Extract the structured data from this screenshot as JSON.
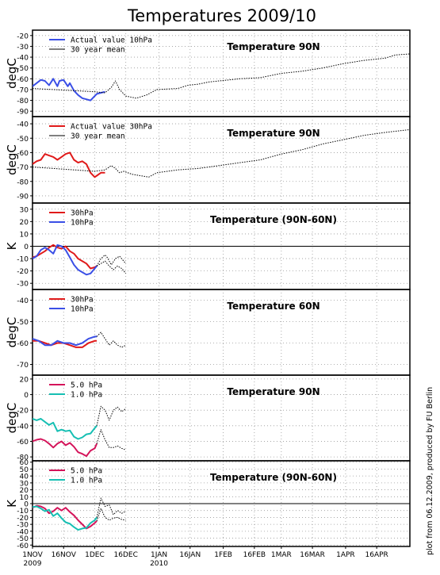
{
  "figure": {
    "title": "Temperatures 2009/10",
    "credit": "plot from 06.12.2009, produced by FU Berlin",
    "x_tick_labels": [
      "1NOV",
      "16NOV",
      "1DEC",
      "16DEC",
      "1JAN",
      "16JAN",
      "1FEB",
      "16FEB",
      "1MAR",
      "16MAR",
      "1APR",
      "16APR"
    ],
    "x_year_labels": [
      {
        "day": 0,
        "label": "2009"
      },
      {
        "day": 61,
        "label": "2010"
      }
    ],
    "x_range_days": [
      0,
      182
    ],
    "colors": {
      "blue": "#3a4fe6",
      "red": "#e01a1a",
      "magenta": "#d4145a",
      "cyan": "#16bfb3",
      "black": "#000000"
    }
  },
  "chart_data": [
    {
      "type": "line",
      "title": "Temperature 90N",
      "ylabel": "degC",
      "ylim": [
        -95,
        -15
      ],
      "yticks": [
        -90,
        -80,
        -70,
        -60,
        -50,
        -40,
        -30,
        -20
      ],
      "zero_line": false,
      "grid": true,
      "legend_position": "top-left",
      "series": [
        {
          "name": "Actual value 10hPa",
          "color": "blue",
          "style": "solid",
          "x": [
            0,
            2,
            4,
            6,
            8,
            10,
            12,
            13,
            15,
            17,
            18,
            20,
            22,
            24,
            26,
            28,
            30,
            31,
            33,
            35
          ],
          "y": [
            -67,
            -64,
            -61,
            -62,
            -66,
            -60,
            -67,
            -62,
            -61,
            -67,
            -64,
            -71,
            -75,
            -78,
            -79,
            -80,
            -76,
            -74,
            -73,
            -72
          ]
        },
        {
          "name": "30 year mean",
          "color": "black",
          "style": "dotted",
          "x": [
            0,
            10,
            20,
            30,
            35,
            38,
            40,
            42,
            45,
            50,
            55,
            60,
            70,
            75,
            80,
            85,
            90,
            95,
            100,
            110,
            120,
            130,
            140,
            150,
            160,
            170,
            175,
            182
          ],
          "y": [
            -69,
            -70,
            -71,
            -72,
            -73,
            -68,
            -62,
            -70,
            -76,
            -78,
            -75,
            -70,
            -69,
            -66,
            -65,
            -63,
            -62,
            -61,
            -60,
            -59,
            -55,
            -53,
            -50,
            -46,
            -43,
            -41,
            -38,
            -37
          ]
        }
      ]
    },
    {
      "type": "line",
      "title": "Temperature 90N",
      "ylabel": "degC",
      "ylim": [
        -95,
        -35
      ],
      "yticks": [
        -90,
        -80,
        -70,
        -60,
        -50,
        -40
      ],
      "zero_line": false,
      "grid": true,
      "legend_position": "top-left",
      "series": [
        {
          "name": "Actual value 30hPa",
          "color": "red",
          "style": "solid",
          "x": [
            0,
            2,
            4,
            6,
            8,
            10,
            12,
            14,
            16,
            18,
            20,
            22,
            24,
            26,
            28,
            30,
            31,
            33,
            35
          ],
          "y": [
            -68,
            -66,
            -65,
            -61,
            -62,
            -63,
            -65,
            -63,
            -61,
            -60,
            -65,
            -67,
            -66,
            -68,
            -74,
            -77,
            -76,
            -74,
            -74
          ]
        },
        {
          "name": "30 year mean",
          "color": "black",
          "style": "dotted",
          "x": [
            0,
            10,
            20,
            30,
            35,
            38,
            40,
            42,
            44,
            48,
            52,
            56,
            60,
            70,
            80,
            90,
            100,
            110,
            120,
            130,
            140,
            150,
            160,
            170,
            182
          ],
          "y": [
            -70,
            -71,
            -72,
            -73,
            -72,
            -69,
            -71,
            -74,
            -73,
            -75,
            -76,
            -77,
            -74,
            -72,
            -71,
            -69,
            -67,
            -65,
            -61,
            -58,
            -54,
            -51,
            -48,
            -46,
            -44
          ]
        }
      ]
    },
    {
      "type": "line",
      "title": "Temperature (90N-60N)",
      "ylabel": "K",
      "ylim": [
        -35,
        35
      ],
      "yticks": [
        -30,
        -20,
        -10,
        0,
        10,
        20,
        30
      ],
      "zero_line": true,
      "grid": true,
      "legend_position": "top-left",
      "series": [
        {
          "name": "30hPa",
          "color": "red",
          "style": "solid",
          "x": [
            0,
            2,
            4,
            6,
            8,
            10,
            12,
            14,
            16,
            18,
            20,
            22,
            24,
            26,
            28,
            30,
            31
          ],
          "y": [
            -9,
            -8,
            -6,
            -4,
            -1,
            1,
            -1,
            -2,
            0,
            -4,
            -6,
            -10,
            -12,
            -14,
            -18,
            -17,
            -16
          ]
        },
        {
          "name": "10hPa",
          "color": "blue",
          "style": "solid",
          "x": [
            0,
            2,
            4,
            6,
            8,
            10,
            12,
            14,
            16,
            18,
            20,
            22,
            24,
            26,
            28,
            30,
            31
          ],
          "y": [
            -10,
            -8,
            -3,
            -1,
            -3,
            -6,
            1,
            0,
            -3,
            -9,
            -15,
            -19,
            -21,
            -23,
            -22,
            -18,
            -16
          ]
        },
        {
          "name": "",
          "color": "black",
          "style": "dotted",
          "x": [
            31,
            33,
            35,
            36,
            38,
            40,
            42,
            45
          ],
          "y": [
            -16,
            -10,
            -7,
            -9,
            -15,
            -10,
            -8,
            -14
          ]
        },
        {
          "name": "",
          "color": "black",
          "style": "dotted",
          "x": [
            31,
            33,
            35,
            37,
            39,
            41,
            43,
            45
          ],
          "y": [
            -16,
            -14,
            -12,
            -16,
            -19,
            -16,
            -18,
            -22
          ]
        }
      ]
    },
    {
      "type": "line",
      "title": "Temperature 60N",
      "ylabel": "degC",
      "ylim": [
        -75,
        -35
      ],
      "yticks": [
        -70,
        -60,
        -50,
        -40
      ],
      "zero_line": false,
      "grid": true,
      "legend_position": "top-left",
      "series": [
        {
          "name": "30hPa",
          "color": "red",
          "style": "solid",
          "x": [
            0,
            3,
            6,
            9,
            12,
            15,
            18,
            21,
            24,
            27,
            30,
            31
          ],
          "y": [
            -59,
            -59,
            -60,
            -61,
            -60,
            -60,
            -61,
            -62,
            -62,
            -60,
            -59,
            -59
          ]
        },
        {
          "name": "10hPa",
          "color": "blue",
          "style": "solid",
          "x": [
            0,
            3,
            6,
            9,
            12,
            15,
            18,
            21,
            24,
            27,
            30,
            31
          ],
          "y": [
            -58,
            -59,
            -61,
            -61,
            -59,
            -60,
            -60,
            -61,
            -60,
            -58,
            -57,
            -57
          ]
        },
        {
          "name": "",
          "color": "black",
          "style": "dotted",
          "x": [
            31,
            33,
            35,
            37,
            39,
            41,
            43,
            45
          ],
          "y": [
            -57,
            -55,
            -58,
            -61,
            -59,
            -61,
            -62,
            -61
          ]
        }
      ]
    },
    {
      "type": "line",
      "title": "Temperature 90N",
      "ylabel": "degC",
      "ylim": [
        -85,
        25
      ],
      "yticks": [
        -80,
        -60,
        -40,
        -20,
        0,
        20
      ],
      "zero_line": false,
      "grid": true,
      "legend_position": "top-left",
      "series": [
        {
          "name": "5.0 hPa",
          "color": "magenta",
          "style": "solid",
          "x": [
            0,
            2,
            4,
            6,
            8,
            10,
            12,
            14,
            16,
            18,
            20,
            22,
            24,
            26,
            28,
            30,
            31
          ],
          "y": [
            -60,
            -58,
            -57,
            -59,
            -63,
            -68,
            -63,
            -60,
            -65,
            -62,
            -67,
            -74,
            -76,
            -79,
            -72,
            -69,
            -63
          ]
        },
        {
          "name": "1.0 hPa",
          "color": "cyan",
          "style": "solid",
          "x": [
            0,
            2,
            4,
            6,
            8,
            10,
            12,
            14,
            16,
            18,
            20,
            22,
            24,
            26,
            28,
            30,
            31
          ],
          "y": [
            -31,
            -33,
            -31,
            -35,
            -39,
            -36,
            -47,
            -45,
            -47,
            -46,
            -54,
            -57,
            -55,
            -51,
            -50,
            -43,
            -40
          ]
        },
        {
          "name": "",
          "color": "black",
          "style": "dotted",
          "x": [
            31,
            33,
            35,
            37,
            39,
            41,
            43,
            45
          ],
          "y": [
            -40,
            -15,
            -20,
            -33,
            -20,
            -16,
            -22,
            -18
          ]
        },
        {
          "name": "",
          "color": "black",
          "style": "dotted",
          "x": [
            31,
            33,
            35,
            37,
            39,
            41,
            43,
            45
          ],
          "y": [
            -63,
            -45,
            -58,
            -68,
            -68,
            -66,
            -69,
            -71
          ]
        }
      ]
    },
    {
      "type": "line",
      "title": "Temperature (90N-60N)",
      "ylabel": "K",
      "ylim": [
        -62,
        62
      ],
      "yticks": [
        -60,
        -50,
        -40,
        -30,
        -20,
        -10,
        0,
        10,
        20,
        30,
        40,
        50,
        60
      ],
      "zero_line": true,
      "grid": true,
      "legend_position": "top-left",
      "series": [
        {
          "name": "5.0 hPa",
          "color": "magenta",
          "style": "solid",
          "x": [
            0,
            2,
            4,
            6,
            8,
            10,
            12,
            14,
            16,
            18,
            20,
            22,
            24,
            26,
            28,
            30,
            31
          ],
          "y": [
            -6,
            -3,
            -4,
            -7,
            -14,
            -11,
            -6,
            -10,
            -6,
            -12,
            -17,
            -24,
            -30,
            -36,
            -33,
            -28,
            -25
          ]
        },
        {
          "name": "1.0 hPa",
          "color": "cyan",
          "style": "solid",
          "x": [
            0,
            2,
            4,
            6,
            8,
            10,
            12,
            14,
            16,
            18,
            20,
            22,
            24,
            26,
            28,
            30,
            31
          ],
          "y": [
            -5,
            -4,
            -7,
            -11,
            -9,
            -18,
            -14,
            -21,
            -27,
            -29,
            -34,
            -38,
            -36,
            -35,
            -28,
            -24,
            -20
          ]
        },
        {
          "name": "",
          "color": "black",
          "style": "dotted",
          "x": [
            31,
            33,
            35,
            37,
            39,
            41,
            43,
            45
          ],
          "y": [
            -20,
            8,
            -4,
            -2,
            -16,
            -10,
            -14,
            -11
          ]
        },
        {
          "name": "",
          "color": "black",
          "style": "dotted",
          "x": [
            31,
            33,
            35,
            37,
            39,
            41,
            43,
            45
          ],
          "y": [
            -25,
            -7,
            -20,
            -24,
            -21,
            -20,
            -23,
            -24
          ]
        }
      ]
    }
  ]
}
